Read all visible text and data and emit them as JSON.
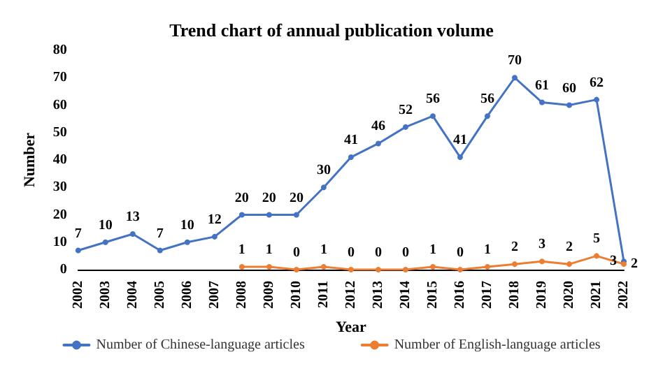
{
  "chart_data": {
    "type": "line",
    "title": "Trend chart of annual publication volume",
    "xlabel": "Year",
    "ylabel": "Number",
    "categories": [
      "2002",
      "2003",
      "2004",
      "2005",
      "2006",
      "2007",
      "2008",
      "2009",
      "2010",
      "2011",
      "2012",
      "2013",
      "2014",
      "2015",
      "2016",
      "2017",
      "2018",
      "2019",
      "2020",
      "2021",
      "2022"
    ],
    "series": [
      {
        "name": "Number of Chinese-language articles",
        "color": "#4472c4",
        "values": [
          7,
          10,
          13,
          7,
          10,
          12,
          20,
          20,
          20,
          30,
          41,
          46,
          52,
          56,
          41,
          56,
          70,
          61,
          60,
          62,
          3
        ]
      },
      {
        "name": "Number of English-language articles",
        "color": "#ed7d31",
        "values": [
          null,
          null,
          null,
          null,
          null,
          null,
          1,
          1,
          0,
          1,
          0,
          0,
          0,
          1,
          0,
          1,
          2,
          3,
          2,
          5,
          2
        ]
      }
    ],
    "ylim": [
      0,
      80
    ],
    "yticks": [
      0,
      10,
      20,
      30,
      40,
      50,
      60,
      70,
      80
    ],
    "data_labels": true,
    "legend": "bottom",
    "marker": "circle",
    "line_style": "solid",
    "grid": false
  }
}
